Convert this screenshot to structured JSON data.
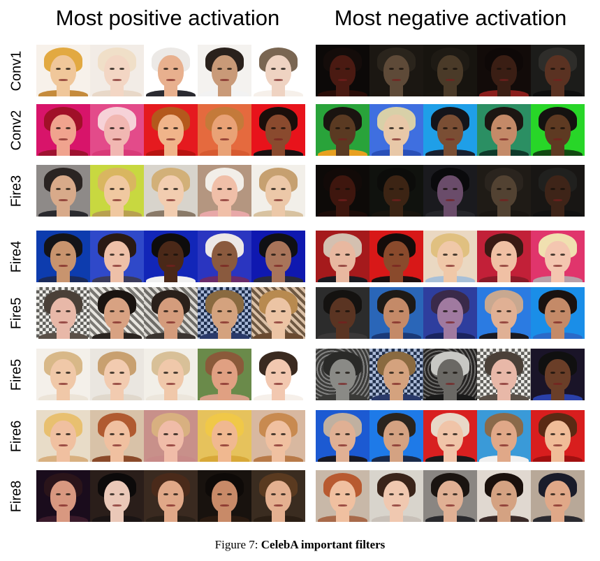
{
  "column_titles": {
    "left": "Most positive activation",
    "right": "Most negative activation"
  },
  "rows": [
    {
      "label": "Conv1",
      "positive": [
        {
          "bg": "#f7f1ea",
          "hair": "#e2a941",
          "skin": "#f0c79a",
          "cloth": "#c58b3c"
        },
        {
          "bg": "#f2ece6",
          "hair": "#f0dfc8",
          "skin": "#f3d6c4",
          "cloth": "#e8d8c8"
        },
        {
          "bg": "#ffffff",
          "hair": "#ece9e6",
          "skin": "#e8b08e",
          "cloth": "#2a2a30"
        },
        {
          "bg": "#f4f2ef",
          "hair": "#2a211c",
          "skin": "#c99a78",
          "cloth": "#f2f2f2"
        },
        {
          "bg": "#ffffff",
          "hair": "#7a6652",
          "skin": "#efd3c2",
          "cloth": "#f6f0ea"
        }
      ],
      "negative": [
        {
          "bg": "#0c0908",
          "hair": "#140c0a",
          "skin": "#4a1a12",
          "cloth": "#2a0d08"
        },
        {
          "bg": "#1b1712",
          "hair": "#2a241c",
          "skin": "#5e4a38",
          "cloth": "#1c1610"
        },
        {
          "bg": "#17140f",
          "hair": "#1e1a14",
          "skin": "#4a3a28",
          "cloth": "#19150f"
        },
        {
          "bg": "#120b09",
          "hair": "#0e0807",
          "skin": "#3a1e14",
          "cloth": "#8a1e1c"
        },
        {
          "bg": "#1c1c1a",
          "hair": "#2e2d2a",
          "skin": "#5a3222",
          "cloth": "#0e0e0e"
        }
      ]
    },
    {
      "label": "Conv2",
      "positive": [
        {
          "bg": "#d8146a",
          "hair": "#a01028",
          "skin": "#f0a38e",
          "cloth": "#9e1230"
        },
        {
          "bg": "#e34b8a",
          "hair": "#f6d2d8",
          "skin": "#f1b7b2",
          "cloth": "#d83a78"
        },
        {
          "bg": "#e51a1f",
          "hair": "#b4581c",
          "skin": "#f0b48a",
          "cloth": "#b81410"
        },
        {
          "bg": "#e56a3e",
          "hair": "#c47a3a",
          "skin": "#e9a276",
          "cloth": "#d75a30"
        },
        {
          "bg": "#e8131b",
          "hair": "#1a0e0a",
          "skin": "#8a4a2e",
          "cloth": "#1a1010"
        }
      ],
      "negative": [
        {
          "bg": "#29a33a",
          "hair": "#1a1410",
          "skin": "#5a3a22",
          "cloth": "#e8a020"
        },
        {
          "bg": "#3f6fe0",
          "hair": "#d8d0a8",
          "skin": "#e8c8a8",
          "cloth": "#2a50b8"
        },
        {
          "bg": "#1f9fe8",
          "hair": "#14141a",
          "skin": "#7a4e34",
          "cloth": "#182030"
        },
        {
          "bg": "#2b8f63",
          "hair": "#1c1612",
          "skin": "#c48a68",
          "cloth": "#0f3a2a"
        },
        {
          "bg": "#28d628",
          "hair": "#141210",
          "skin": "#5e3a22",
          "cloth": "#124a12"
        }
      ]
    },
    {
      "label": "Fire3",
      "positive": [
        {
          "bg": "#8e8a88",
          "hair": "#2a2422",
          "skin": "#d8aa8a",
          "cloth": "#2a2a2e"
        },
        {
          "bg": "#c8d840",
          "hair": "#d9b660",
          "skin": "#f0c8a0",
          "cloth": "#b8a050"
        },
        {
          "bg": "#d8d4cc",
          "hair": "#d2b078",
          "skin": "#f2cdb0",
          "cloth": "#8a7a68"
        },
        {
          "bg": "#b49680",
          "hair": "#f2eee8",
          "skin": "#f0bfa8",
          "cloth": "#e8a8a8"
        },
        {
          "bg": "#f2efe9",
          "hair": "#c6a070",
          "skin": "#ecc8a8",
          "cloth": "#d8c2a0"
        }
      ],
      "negative": [
        {
          "bg": "#0d0a08",
          "hair": "#120a08",
          "skin": "#3e160e",
          "cloth": "#1c0c08"
        },
        {
          "bg": "#10120e",
          "hair": "#0c0c0a",
          "skin": "#3c2414",
          "cloth": "#18140e"
        },
        {
          "bg": "#1a1a1e",
          "hair": "#0a0a0c",
          "skin": "#6a4c6a",
          "cloth": "#26262a"
        },
        {
          "bg": "#1f1b16",
          "hair": "#2a241e",
          "skin": "#524232",
          "cloth": "#1a1612"
        },
        {
          "bg": "#181614",
          "hair": "#20201e",
          "skin": "#3e2418",
          "cloth": "#111111"
        }
      ]
    },
    {
      "label": "Fire4",
      "positive": [
        {
          "bg": "#0d3cae",
          "hair": "#141418",
          "skin": "#c8946e",
          "cloth": "#1a2a5a"
        },
        {
          "bg": "#2f49c9",
          "hair": "#2a1a14",
          "skin": "#eec0a8",
          "cloth": "#3a3a5a"
        },
        {
          "bg": "#1226b8",
          "hair": "#0e0c0c",
          "skin": "#4a2818",
          "cloth": "#f0f0f0"
        },
        {
          "bg": "#2a35c0",
          "hair": "#ece8e6",
          "skin": "#8a5a3e",
          "cloth": "#6a2a6a"
        },
        {
          "bg": "#0f18b0",
          "hair": "#101014",
          "skin": "#a8745a",
          "cloth": "#2a2a3a"
        }
      ],
      "negative": [
        {
          "bg": "#a51a1c",
          "hair": "#d4c0b0",
          "skin": "#e8b8a0",
          "cloth": "#1a1a20"
        },
        {
          "bg": "#d81818",
          "hair": "#140c0a",
          "skin": "#8a4a2c",
          "cloth": "#1c1010"
        },
        {
          "bg": "#ead8c2",
          "hair": "#e0c080",
          "skin": "#f0c8a8",
          "cloth": "#a8c0d8"
        },
        {
          "bg": "#c22038",
          "hair": "#3a1a14",
          "skin": "#f0c0a4",
          "cloth": "#8a1a28"
        },
        {
          "bg": "#e0356c",
          "hair": "#f0e0b0",
          "skin": "#f4c6b0",
          "cloth": "#b8a0a8"
        }
      ]
    },
    {
      "label": "Fire5",
      "positive": [
        {
          "bg": "#d8d4cc",
          "hair": "#4a4038",
          "skin": "#e8b8a8",
          "cloth": "#5a5048",
          "pattern": "checker"
        },
        {
          "bg": "#dcd8d0",
          "hair": "#1a1410",
          "skin": "#d8a282",
          "cloth": "#2a2420",
          "pattern": "stripes"
        },
        {
          "bg": "#c8c4bc",
          "hair": "#2a201a",
          "skin": "#d49c7c",
          "cloth": "#3a3430",
          "pattern": "stripes"
        },
        {
          "bg": "#3e62a8",
          "hair": "#8a6a40",
          "skin": "#d4a27e",
          "cloth": "#2a3a6a",
          "pattern": "checker"
        },
        {
          "bg": "#c8a078",
          "hair": "#b88a50",
          "skin": "#ecc4a4",
          "cloth": "#6a4a30",
          "pattern": "stripes"
        }
      ],
      "negative": [
        {
          "bg": "#2c2c2c",
          "hair": "#141210",
          "skin": "#5a3422",
          "cloth": "#3a3838"
        },
        {
          "bg": "#2a66b8",
          "hair": "#1e1a16",
          "skin": "#c48a68",
          "cloth": "#1a3a78"
        },
        {
          "bg": "#2e3e9e",
          "hair": "#3a2a4a",
          "skin": "#a07aa0",
          "cloth": "#1a2460"
        },
        {
          "bg": "#2b7be2",
          "hair": "#c8a890",
          "skin": "#e0b094",
          "cloth": "#1a1a22"
        },
        {
          "bg": "#1a8ee8",
          "hair": "#1a1210",
          "skin": "#c48a68",
          "cloth": "#2a6ac8"
        }
      ]
    },
    {
      "label": "Fire5",
      "positive": [
        {
          "bg": "#f4f0ea",
          "hair": "#d8b888",
          "skin": "#f0c8a8",
          "cloth": "#ece4d8"
        },
        {
          "bg": "#eae6e0",
          "hair": "#c8a070",
          "skin": "#f2cbb0",
          "cloth": "#e0d8cc"
        },
        {
          "bg": "#f2efe8",
          "hair": "#d8c098",
          "skin": "#f0c8aa",
          "cloth": "#ece6dc"
        },
        {
          "bg": "#6a8a4a",
          "hair": "#8a5a3a",
          "skin": "#e0a082",
          "cloth": "#d8a088"
        },
        {
          "bg": "#ffffff",
          "hair": "#3a2a20",
          "skin": "#f2c8b0",
          "cloth": "#f6f0ea"
        }
      ],
      "negative": [
        {
          "bg": "#5a5a58",
          "hair": "#2a2a28",
          "skin": "#8a8a86",
          "cloth": "#3a3a38",
          "pattern": "noise"
        },
        {
          "bg": "#4a6aa8",
          "hair": "#8a6a40",
          "skin": "#d4a27e",
          "cloth": "#2a3a6a",
          "pattern": "checker"
        },
        {
          "bg": "#3a3836",
          "hair": "#c8c8c4",
          "skin": "#6a6864",
          "cloth": "#1a1a1a",
          "pattern": "noise"
        },
        {
          "bg": "#d8d4cc",
          "hair": "#4a4038",
          "skin": "#e8b8a8",
          "cloth": "#5a5048",
          "pattern": "checker"
        },
        {
          "bg": "#1a1428",
          "hair": "#101010",
          "skin": "#6a3e28",
          "cloth": "#2a40a8"
        }
      ]
    },
    {
      "label": "Fire6",
      "positive": [
        {
          "bg": "#e8dcc8",
          "hair": "#e8c070",
          "skin": "#f0c0a0",
          "cloth": "#d8b080"
        },
        {
          "bg": "#d8c2a8",
          "hair": "#b05a30",
          "skin": "#f0c0a0",
          "cloth": "#8a4a2a"
        },
        {
          "bg": "#c8908a",
          "hair": "#d8b080",
          "skin": "#f0bca8",
          "cloth": "#c88a88"
        },
        {
          "bg": "#e6c25c",
          "hair": "#f0c848",
          "skin": "#f0b890",
          "cloth": "#d8a838"
        },
        {
          "bg": "#d8b8a0",
          "hair": "#c88a50",
          "skin": "#f0c0a0",
          "cloth": "#b87a48"
        }
      ],
      "negative": [
        {
          "bg": "#1c5ad2",
          "hair": "#c0b0a0",
          "skin": "#e0b094",
          "cloth": "#1a1a24"
        },
        {
          "bg": "#1e7ae8",
          "hair": "#2a241e",
          "skin": "#d4a282",
          "cloth": "#1a2a4a"
        },
        {
          "bg": "#d82020",
          "hair": "#e8d8c8",
          "skin": "#f0c4a8",
          "cloth": "#1a1a1c"
        },
        {
          "bg": "#3a9ad8",
          "hair": "#8a6a4a",
          "skin": "#e0a888",
          "cloth": "#f0f0f0"
        },
        {
          "bg": "#d81e1e",
          "hair": "#5a2a14",
          "skin": "#f0bc98",
          "cloth": "#a01010"
        }
      ]
    },
    {
      "label": "Fire8",
      "positive": [
        {
          "bg": "#1a0c1c",
          "hair": "#2a141a",
          "skin": "#d89880",
          "cloth": "#3a1a2a"
        },
        {
          "bg": "#2a1e1a",
          "hair": "#0c0a0a",
          "skin": "#eac8b8",
          "cloth": "#1a1414"
        },
        {
          "bg": "#3a2a20",
          "hair": "#4a2a1a",
          "skin": "#e0a888",
          "cloth": "#2a2018"
        },
        {
          "bg": "#18120e",
          "hair": "#0e0a08",
          "skin": "#c88a68",
          "cloth": "#2a1a10"
        },
        {
          "bg": "#3a2c20",
          "hair": "#5a3a20",
          "skin": "#e4b090",
          "cloth": "#2a1e14"
        }
      ],
      "negative": [
        {
          "bg": "#c8b8a8",
          "hair": "#b85a30",
          "skin": "#f0c0a0",
          "cloth": "#a86a4a"
        },
        {
          "bg": "#d8d4cc",
          "hair": "#3a241a",
          "skin": "#f0c8b0",
          "cloth": "#c8c0b8"
        },
        {
          "bg": "#8a8682",
          "hair": "#1a1410",
          "skin": "#e0b094",
          "cloth": "#2a2a2e"
        },
        {
          "bg": "#e0d8d0",
          "hair": "#1a100c",
          "skin": "#d4a282",
          "cloth": "#3a2a28"
        },
        {
          "bg": "#b8a898",
          "hair": "#1a1c2a",
          "skin": "#e0a888",
          "cloth": "#2a2a30"
        }
      ]
    }
  ],
  "caption": {
    "prefix": "Figure 7: ",
    "title": "CelebA important filters"
  }
}
